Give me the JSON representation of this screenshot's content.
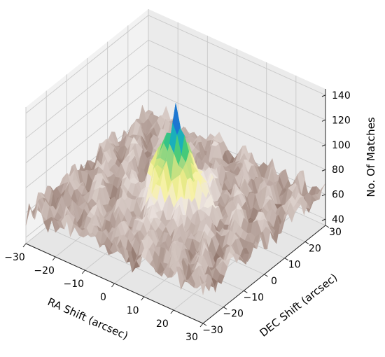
{
  "chart_data": {
    "type": "surface",
    "projection": "3d",
    "title": "",
    "xlabel": "RA Shift (arcsec)",
    "ylabel": "DEC Shift (arcsec)",
    "zlabel": "No. Of Matches",
    "xlim": [
      -30,
      30
    ],
    "ylim": [
      -30,
      30
    ],
    "zlim": [
      35,
      145
    ],
    "x_ticks": [
      "−30",
      "−20",
      "−10",
      "0",
      "10",
      "20",
      "30"
    ],
    "y_ticks": [
      "−30",
      "−20",
      "−10",
      "0",
      "10",
      "20",
      "30"
    ],
    "z_ticks": [
      "40",
      "60",
      "80",
      "100",
      "120",
      "140"
    ],
    "grid": true,
    "colormap": "terrain",
    "peak": {
      "ra": 0,
      "dec": 0,
      "matches": 135
    },
    "background_level": 62,
    "profile_along_ra_at_dec_0": {
      "x": [
        -30,
        -25,
        -20,
        -15,
        -10,
        -5,
        0,
        5,
        10,
        15,
        20,
        25,
        30
      ],
      "values": [
        55,
        58,
        62,
        60,
        66,
        92,
        135,
        95,
        68,
        62,
        60,
        58,
        54
      ]
    },
    "profile_along_dec_at_ra_0": {
      "x": [
        -30,
        -25,
        -20,
        -15,
        -10,
        -5,
        0,
        5,
        10,
        15,
        20,
        25,
        30
      ],
      "values": [
        56,
        60,
        61,
        64,
        70,
        96,
        135,
        94,
        70,
        63,
        61,
        59,
        57
      ]
    }
  }
}
